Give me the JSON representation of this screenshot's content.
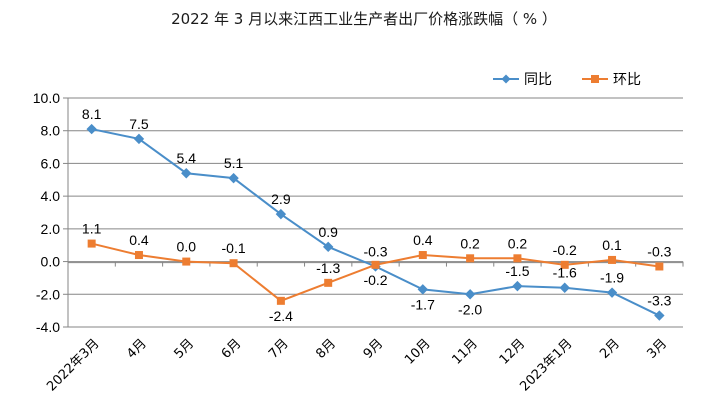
{
  "chart_data": {
    "type": "line",
    "title": "2022 年 3 月以来江西工业生产者出厂价格涨跌幅（ % ）",
    "xlabel": "",
    "ylabel": "",
    "categories": [
      "2022年3月",
      "4月",
      "5月",
      "6月",
      "7月",
      "8月",
      "9月",
      "10月",
      "11月",
      "12月",
      "2023年1月",
      "2月",
      "3月"
    ],
    "ylim": [
      -4.0,
      10.0
    ],
    "yticks": [
      "10.0",
      "8.0",
      "6.0",
      "4.0",
      "2.0",
      "0.0",
      "-2.0",
      "-4.0"
    ],
    "grid": true,
    "legend_position": "top-right",
    "series": [
      {
        "name": "同比",
        "color": "#4a8ec9",
        "marker": "diamond",
        "values": [
          8.1,
          7.5,
          5.4,
          5.1,
          2.9,
          0.9,
          -0.3,
          -1.7,
          -2.0,
          -1.5,
          -1.6,
          -1.9,
          -3.3
        ],
        "labels": [
          "8.1",
          "7.5",
          "5.4",
          "5.1",
          "2.9",
          "0.9",
          "-0.3",
          "-1.7",
          "-2.0",
          "-1.5",
          "-1.6",
          "-1.9",
          "-3.3"
        ]
      },
      {
        "name": "环比",
        "color": "#ed7d31",
        "marker": "square",
        "values": [
          1.1,
          0.4,
          0.0,
          -0.1,
          -2.4,
          -1.3,
          -0.2,
          0.4,
          0.2,
          0.2,
          -0.2,
          0.1,
          -0.3
        ],
        "labels": [
          "1.1",
          "0.4",
          "0.0",
          "-0.1",
          "-2.4",
          "-1.3",
          "-0.2",
          "0.4",
          "0.2",
          "0.2",
          "-0.2",
          "0.1",
          "-0.3"
        ]
      }
    ]
  }
}
